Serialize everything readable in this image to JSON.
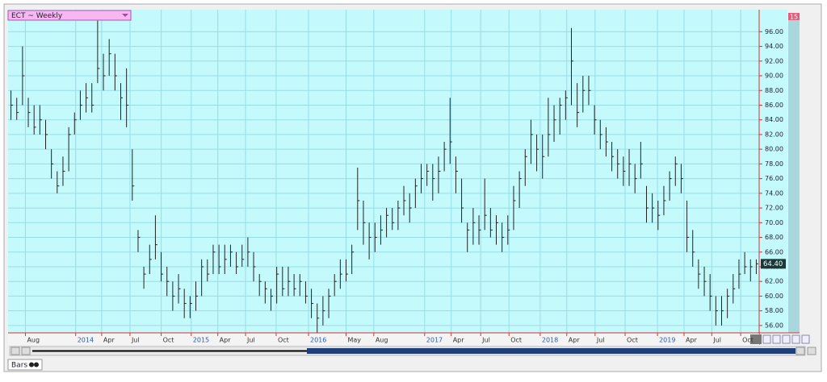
{
  "chart_data": {
    "type": "ohlc",
    "title": "ECT ~ Weekly",
    "badge": "15",
    "color": "#222222",
    "grid": true,
    "xlim": [
      -0.5,
      129.5
    ],
    "ylim": [
      55,
      99
    ],
    "xticks": [
      {
        "value": 2.5,
        "label": "Aug"
      },
      {
        "value": 11.2,
        "label": "2014"
      },
      {
        "value": 15.7,
        "label": "Apr"
      },
      {
        "value": 20.6,
        "label": "Jul"
      },
      {
        "value": 26,
        "label": "Oct"
      },
      {
        "value": 31.2,
        "label": "2015"
      },
      {
        "value": 35.8,
        "label": "Apr"
      },
      {
        "value": 40.6,
        "label": "Jul"
      },
      {
        "value": 45.9,
        "label": "Oct"
      },
      {
        "value": 51.5,
        "label": "2016"
      },
      {
        "value": 58,
        "label": "May"
      },
      {
        "value": 62.8,
        "label": "Aug"
      },
      {
        "value": 71.6,
        "label": "2017"
      },
      {
        "value": 76.2,
        "label": "Apr"
      },
      {
        "value": 81.3,
        "label": "Jul"
      },
      {
        "value": 86.2,
        "label": "Oct"
      },
      {
        "value": 91.6,
        "label": "2018"
      },
      {
        "value": 96.2,
        "label": "Apr"
      },
      {
        "value": 101.1,
        "label": "Jul"
      },
      {
        "value": 106.3,
        "label": "Oct"
      },
      {
        "value": 111.9,
        "label": "2019"
      },
      {
        "value": 116.5,
        "label": "Apr"
      },
      {
        "value": 121.3,
        "label": "Jul"
      },
      {
        "value": 126.3,
        "label": "Oct"
      }
    ],
    "yticks": [
      {
        "value": 56,
        "label": "56.00"
      },
      {
        "value": 58,
        "label": "58.00"
      },
      {
        "value": 60,
        "label": "60.00"
      },
      {
        "value": 62,
        "label": "62.00"
      },
      {
        "value": 64,
        "label": "64.00"
      },
      {
        "value": 66,
        "label": "66.00"
      },
      {
        "value": 68,
        "label": "68.00"
      },
      {
        "value": 70,
        "label": "70.00"
      },
      {
        "value": 72,
        "label": "72.00"
      },
      {
        "value": 74,
        "label": "74.00"
      },
      {
        "value": 76,
        "label": "76.00"
      },
      {
        "value": 78,
        "label": "78.00"
      },
      {
        "value": 80,
        "label": "80.00"
      },
      {
        "value": 82,
        "label": "82.00"
      },
      {
        "value": 84,
        "label": "84.00"
      },
      {
        "value": 86,
        "label": "86.00"
      },
      {
        "value": 88,
        "label": "88.00"
      },
      {
        "value": 90,
        "label": "90.00"
      },
      {
        "value": 92,
        "label": "92.00"
      },
      {
        "value": 94,
        "label": "94.00"
      },
      {
        "value": 96,
        "label": "96.00"
      }
    ],
    "last_price": {
      "value": 64.4,
      "label": "64.40"
    },
    "high": [
      88,
      87,
      94,
      87,
      86,
      86,
      84,
      80,
      77,
      79,
      83,
      85,
      88,
      89,
      89,
      97.5,
      93,
      95,
      93,
      89,
      91,
      80,
      69,
      64,
      67,
      71,
      66,
      64,
      62,
      63,
      61,
      60,
      62,
      65,
      65,
      67,
      67,
      67,
      67,
      66,
      67,
      68,
      66,
      63,
      62,
      61,
      64,
      64,
      64,
      63,
      63,
      62,
      61,
      59,
      60,
      61,
      63,
      65,
      65,
      67,
      77.5,
      73,
      70,
      70,
      71,
      72,
      72,
      73,
      75,
      74,
      76,
      78,
      78,
      78,
      79,
      81,
      87,
      79,
      76,
      70,
      72,
      71,
      76,
      72,
      71,
      70,
      71,
      75,
      77,
      80,
      84,
      82,
      82,
      87,
      86,
      87,
      88,
      96.5,
      89,
      90,
      90,
      86,
      84,
      83,
      81,
      80,
      79,
      80,
      78,
      81,
      75,
      74,
      73,
      75,
      77,
      79,
      78,
      73,
      69,
      65,
      64,
      63,
      60,
      60,
      61,
      63,
      65,
      66,
      65,
      65
    ],
    "low": [
      84,
      84,
      86,
      83,
      82,
      82,
      80,
      76,
      74,
      75,
      77,
      82,
      84,
      85,
      85,
      89,
      88,
      90,
      88,
      84,
      83,
      73,
      66,
      61,
      63,
      65,
      62,
      60,
      58,
      59,
      57,
      57,
      58,
      60,
      62,
      63,
      63,
      63,
      64,
      63,
      64,
      64,
      62,
      60,
      59,
      58,
      59,
      60,
      60,
      60,
      60,
      59,
      57,
      55,
      56,
      57,
      60,
      61,
      62,
      63,
      69,
      67,
      65,
      66,
      67,
      68,
      69,
      69,
      71,
      70,
      72,
      74,
      75,
      73,
      74,
      77,
      78,
      74,
      70,
      66,
      67,
      67,
      69,
      68,
      67,
      66,
      67,
      69,
      72,
      75,
      78,
      77,
      76,
      79,
      81,
      82,
      84,
      86,
      83,
      85,
      86,
      82,
      80,
      79,
      77,
      76,
      75,
      75,
      74,
      76,
      70,
      70,
      69,
      71,
      73,
      75,
      74,
      66,
      64,
      61,
      60,
      58,
      56,
      56,
      57,
      59,
      61,
      63,
      62,
      63
    ],
    "close": [
      86,
      85,
      90,
      85,
      83,
      84,
      82,
      78,
      75,
      77,
      82,
      84,
      86,
      87,
      86,
      91,
      90,
      93,
      90,
      87,
      86,
      75,
      68,
      63,
      65,
      67,
      63,
      62,
      60,
      61,
      59,
      59,
      60,
      64,
      63,
      66,
      64,
      65,
      66,
      64,
      65,
      66,
      64,
      62,
      61,
      60,
      63,
      61,
      62,
      61,
      62,
      60,
      59,
      57,
      58,
      60,
      62,
      63,
      63,
      66,
      73,
      70,
      68,
      68,
      69,
      71,
      70,
      72,
      73,
      72,
      75,
      76,
      77,
      76,
      77,
      80,
      81,
      77,
      72,
      69,
      70,
      69,
      71,
      69,
      70,
      68,
      69,
      73,
      76,
      79,
      82,
      80,
      79,
      82,
      84,
      86,
      87,
      92,
      85,
      88,
      88,
      84,
      82,
      81,
      79,
      78,
      77,
      78,
      76,
      78,
      72,
      72,
      71,
      73,
      76,
      78,
      76,
      68,
      66,
      63,
      62,
      60,
      58,
      58,
      60,
      61,
      63,
      64,
      64,
      64.4
    ]
  },
  "ui": {
    "tab": "Bars"
  }
}
